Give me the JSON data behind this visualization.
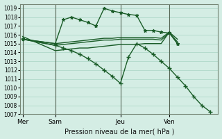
{
  "title": "Pression niveau de la mer( hPa )",
  "background_color": "#d4ede4",
  "grid_color": "#a8d4c4",
  "line_color": "#1a5c28",
  "ylim": [
    1007,
    1019.5
  ],
  "yticks": [
    1007,
    1008,
    1009,
    1010,
    1011,
    1012,
    1013,
    1014,
    1015,
    1016,
    1017,
    1018,
    1019
  ],
  "day_labels": [
    "Mer",
    "Sam",
    "Jeu",
    "Ven"
  ],
  "day_positions": [
    0,
    4,
    12,
    18
  ],
  "xlim": [
    -0.3,
    24
  ],
  "line_star": {
    "x": [
      0,
      4,
      5,
      6,
      7,
      8,
      9,
      10,
      11,
      12,
      13,
      14,
      15,
      16,
      17,
      18,
      19
    ],
    "y": [
      1015.5,
      1015.0,
      1017.7,
      1018.0,
      1017.7,
      1017.4,
      1017.0,
      1019.0,
      1018.7,
      1018.5,
      1018.3,
      1018.2,
      1016.5,
      1016.5,
      1016.3,
      1016.2,
      1015.0
    ]
  },
  "line_flat1": {
    "x": [
      0,
      4,
      5,
      6,
      7,
      8,
      9,
      10,
      11,
      12,
      13,
      14,
      15,
      16,
      17,
      18,
      19
    ],
    "y": [
      1015.5,
      1015.0,
      1015.1,
      1015.2,
      1015.3,
      1015.4,
      1015.5,
      1015.6,
      1015.6,
      1015.7,
      1015.7,
      1015.7,
      1015.7,
      1015.7,
      1015.6,
      1016.3,
      1015.5
    ]
  },
  "line_flat2": {
    "x": [
      0,
      4,
      5,
      6,
      7,
      8,
      9,
      10,
      11,
      12,
      13,
      14,
      15,
      16,
      17,
      18,
      19
    ],
    "y": [
      1015.5,
      1014.8,
      1014.9,
      1015.0,
      1015.1,
      1015.2,
      1015.3,
      1015.4,
      1015.4,
      1015.5,
      1015.5,
      1015.5,
      1015.5,
      1015.5,
      1015.4,
      1016.2,
      1015.2
    ]
  },
  "line_flat3": {
    "x": [
      0,
      4,
      5,
      6,
      7,
      8,
      9,
      10,
      11,
      12,
      13,
      14,
      15,
      16,
      17,
      18,
      19
    ],
    "y": [
      1015.8,
      1014.2,
      1014.3,
      1014.4,
      1014.5,
      1014.5,
      1014.6,
      1014.7,
      1014.8,
      1014.9,
      1014.9,
      1014.9,
      1015.0,
      1015.0,
      1015.0,
      1016.3,
      1015.0
    ]
  },
  "line_plus": {
    "x": [
      0,
      4,
      5,
      6,
      7,
      8,
      9,
      10,
      11,
      12,
      13,
      14,
      15,
      16,
      17,
      18,
      19,
      20,
      21,
      22,
      23
    ],
    "y": [
      1015.5,
      1014.8,
      1014.5,
      1014.2,
      1013.8,
      1013.3,
      1012.7,
      1012.0,
      1011.3,
      1010.5,
      1013.5,
      1015.0,
      1014.5,
      1013.8,
      1013.0,
      1012.2,
      1011.2,
      1010.2,
      1009.0,
      1008.0,
      1007.3
    ]
  }
}
